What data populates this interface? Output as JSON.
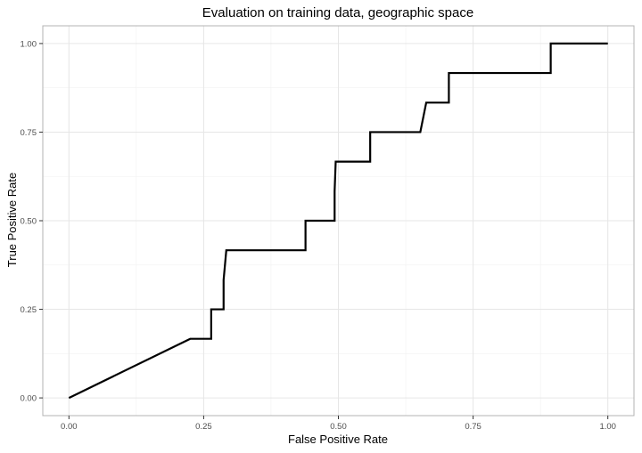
{
  "chart_data": {
    "type": "line",
    "title": "Evaluation on training data, geographic space",
    "xlabel": "False Positive Rate",
    "ylabel": "True Positive Rate",
    "xlim": [
      0,
      1
    ],
    "ylim": [
      0,
      1
    ],
    "x_ticks": [
      0,
      0.25,
      0.5,
      0.75,
      1
    ],
    "x_tick_labels": [
      "0.00",
      "0.25",
      "0.50",
      "0.75",
      "1.00"
    ],
    "y_ticks": [
      0,
      0.25,
      0.5,
      0.75,
      1
    ],
    "y_tick_labels": [
      "0.00",
      "0.25",
      "0.50",
      "0.75",
      "1.00"
    ],
    "grid": true,
    "series": [
      {
        "color": "#000000",
        "points": [
          {
            "x": 0.0,
            "y": 0.0
          },
          {
            "x": 0.225,
            "y": 0.1667
          },
          {
            "x": 0.264,
            "y": 0.1667
          },
          {
            "x": 0.264,
            "y": 0.25
          },
          {
            "x": 0.287,
            "y": 0.25
          },
          {
            "x": 0.287,
            "y": 0.333
          },
          {
            "x": 0.292,
            "y": 0.4167
          },
          {
            "x": 0.439,
            "y": 0.4167
          },
          {
            "x": 0.439,
            "y": 0.5
          },
          {
            "x": 0.493,
            "y": 0.5
          },
          {
            "x": 0.493,
            "y": 0.583
          },
          {
            "x": 0.495,
            "y": 0.6667
          },
          {
            "x": 0.559,
            "y": 0.6667
          },
          {
            "x": 0.559,
            "y": 0.75
          },
          {
            "x": 0.652,
            "y": 0.75
          },
          {
            "x": 0.663,
            "y": 0.8333
          },
          {
            "x": 0.705,
            "y": 0.8333
          },
          {
            "x": 0.705,
            "y": 0.9167
          },
          {
            "x": 0.894,
            "y": 0.9167
          },
          {
            "x": 0.894,
            "y": 1.0
          },
          {
            "x": 1.0,
            "y": 1.0
          }
        ]
      }
    ]
  }
}
